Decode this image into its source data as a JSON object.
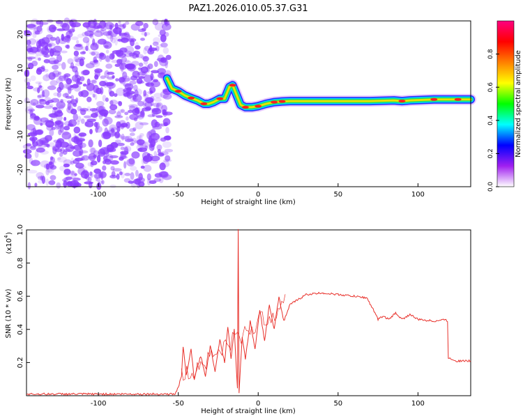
{
  "figure_title": "PAZ1.2026.010.05.37.G31",
  "chart_data": [
    {
      "type": "heatmap",
      "title": "PAZ1.2026.010.05.37.G31",
      "xlabel": "Height of straight line (km)",
      "ylabel": "Frequency (Hz)",
      "xlim": [
        -145,
        133
      ],
      "ylim": [
        -25,
        24
      ],
      "x_ticks": [
        -100,
        -50,
        0,
        50,
        100
      ],
      "y_ticks": [
        -20,
        -10,
        0,
        10,
        20
      ],
      "x_tick_labels": [
        "-100",
        "-50",
        "0",
        "50",
        "100"
      ],
      "y_tick_labels": [
        "-20",
        "-10",
        "0",
        "10",
        "20"
      ],
      "noise_region": {
        "x_start": -145,
        "x_end": -56,
        "description_color": "#8a3cff"
      },
      "ridge": [
        {
          "x": -57,
          "f": 7.0
        },
        {
          "x": -54,
          "f": 4.0
        },
        {
          "x": -50,
          "f": 3.2
        },
        {
          "x": -46,
          "f": 2.0
        },
        {
          "x": -42,
          "f": 1.2
        },
        {
          "x": -38,
          "f": 0.5
        },
        {
          "x": -34,
          "f": -0.5
        },
        {
          "x": -31,
          "f": -0.5
        },
        {
          "x": -28,
          "f": 0.0
        },
        {
          "x": -24,
          "f": 1.0
        },
        {
          "x": -21,
          "f": 1.0
        },
        {
          "x": -18,
          "f": 4.5
        },
        {
          "x": -16,
          "f": 5.0
        },
        {
          "x": -13,
          "f": 1.5
        },
        {
          "x": -11,
          "f": -0.8
        },
        {
          "x": -8,
          "f": -1.5
        },
        {
          "x": -4,
          "f": -1.5
        },
        {
          "x": 0,
          "f": -1.2
        },
        {
          "x": 5,
          "f": -0.5
        },
        {
          "x": 10,
          "f": 0.0
        },
        {
          "x": 15,
          "f": 0.2
        },
        {
          "x": 20,
          "f": 0.3
        },
        {
          "x": 30,
          "f": 0.3
        },
        {
          "x": 50,
          "f": 0.3
        },
        {
          "x": 70,
          "f": 0.3
        },
        {
          "x": 85,
          "f": 0.5
        },
        {
          "x": 90,
          "f": 0.3
        },
        {
          "x": 95,
          "f": 0.5
        },
        {
          "x": 110,
          "f": 0.8
        },
        {
          "x": 133,
          "f": 0.8
        }
      ],
      "colorbar": {
        "label": "Normalized spectral amplitude",
        "range": [
          0,
          1
        ],
        "ticks": [
          0.0,
          0.2,
          0.4,
          0.6,
          0.8
        ],
        "tick_labels": [
          "0.0",
          "0.2",
          "0.4",
          "0.6",
          "0.8"
        ],
        "colors": [
          "#ffffff",
          "#a020f0",
          "#0000ff",
          "#00ffff",
          "#00ff00",
          "#ffff00",
          "#ff8000",
          "#ff0000",
          "#ff0080"
        ]
      }
    },
    {
      "type": "line",
      "xlabel": "Height of straight line (km)",
      "ylabel": "SNR (10 * v/v)",
      "y_scale_label": "(x10",
      "y_scale_exp": "4",
      "y_scale_close": ")",
      "xlim": [
        -145,
        133
      ],
      "ylim": [
        0,
        1.0
      ],
      "x_ticks": [
        -100,
        -50,
        0,
        50,
        100
      ],
      "y_ticks": [
        0.2,
        0.4,
        0.6,
        0.8,
        1.0
      ],
      "x_tick_labels": [
        "-100",
        "-50",
        "0",
        "50",
        "100"
      ],
      "y_tick_labels": [
        "0.2",
        "0.4",
        "0.6",
        "0.8",
        "1.0"
      ],
      "line_color": "#e8302a",
      "series": [
        {
          "name": "SNR",
          "points": [
            [
              -145,
              0.01
            ],
            [
              -100,
              0.01
            ],
            [
              -60,
              0.01
            ],
            [
              -52,
              0.01
            ],
            [
              -50,
              0.05
            ],
            [
              -48,
              0.12
            ],
            [
              -47,
              0.3
            ],
            [
              -45,
              0.12
            ],
            [
              -42,
              0.28
            ],
            [
              -40,
              0.1
            ],
            [
              -36,
              0.24
            ],
            [
              -33,
              0.12
            ],
            [
              -30,
              0.3
            ],
            [
              -27,
              0.15
            ],
            [
              -24,
              0.34
            ],
            [
              -21,
              0.2
            ],
            [
              -19,
              0.42
            ],
            [
              -17,
              0.22
            ],
            [
              -15,
              0.4
            ],
            [
              -13,
              0.05
            ],
            [
              -12.5,
              1.0
            ],
            [
              -12,
              0.02
            ],
            [
              -10,
              0.35
            ],
            [
              -8,
              0.22
            ],
            [
              -5,
              0.45
            ],
            [
              -2,
              0.28
            ],
            [
              1,
              0.52
            ],
            [
              4,
              0.33
            ],
            [
              7,
              0.55
            ],
            [
              10,
              0.4
            ],
            [
              13,
              0.6
            ],
            [
              16,
              0.45
            ],
            [
              20,
              0.55
            ],
            [
              25,
              0.58
            ],
            [
              30,
              0.61
            ],
            [
              40,
              0.62
            ],
            [
              50,
              0.61
            ],
            [
              60,
              0.6
            ],
            [
              68,
              0.59
            ],
            [
              72,
              0.52
            ],
            [
              75,
              0.46
            ],
            [
              78,
              0.48
            ],
            [
              82,
              0.46
            ],
            [
              86,
              0.5
            ],
            [
              90,
              0.46
            ],
            [
              95,
              0.49
            ],
            [
              100,
              0.46
            ],
            [
              110,
              0.45
            ],
            [
              117,
              0.46
            ],
            [
              118.5,
              0.45
            ],
            [
              119,
              0.23
            ],
            [
              124,
              0.21
            ],
            [
              133,
              0.21
            ]
          ]
        }
      ]
    }
  ]
}
